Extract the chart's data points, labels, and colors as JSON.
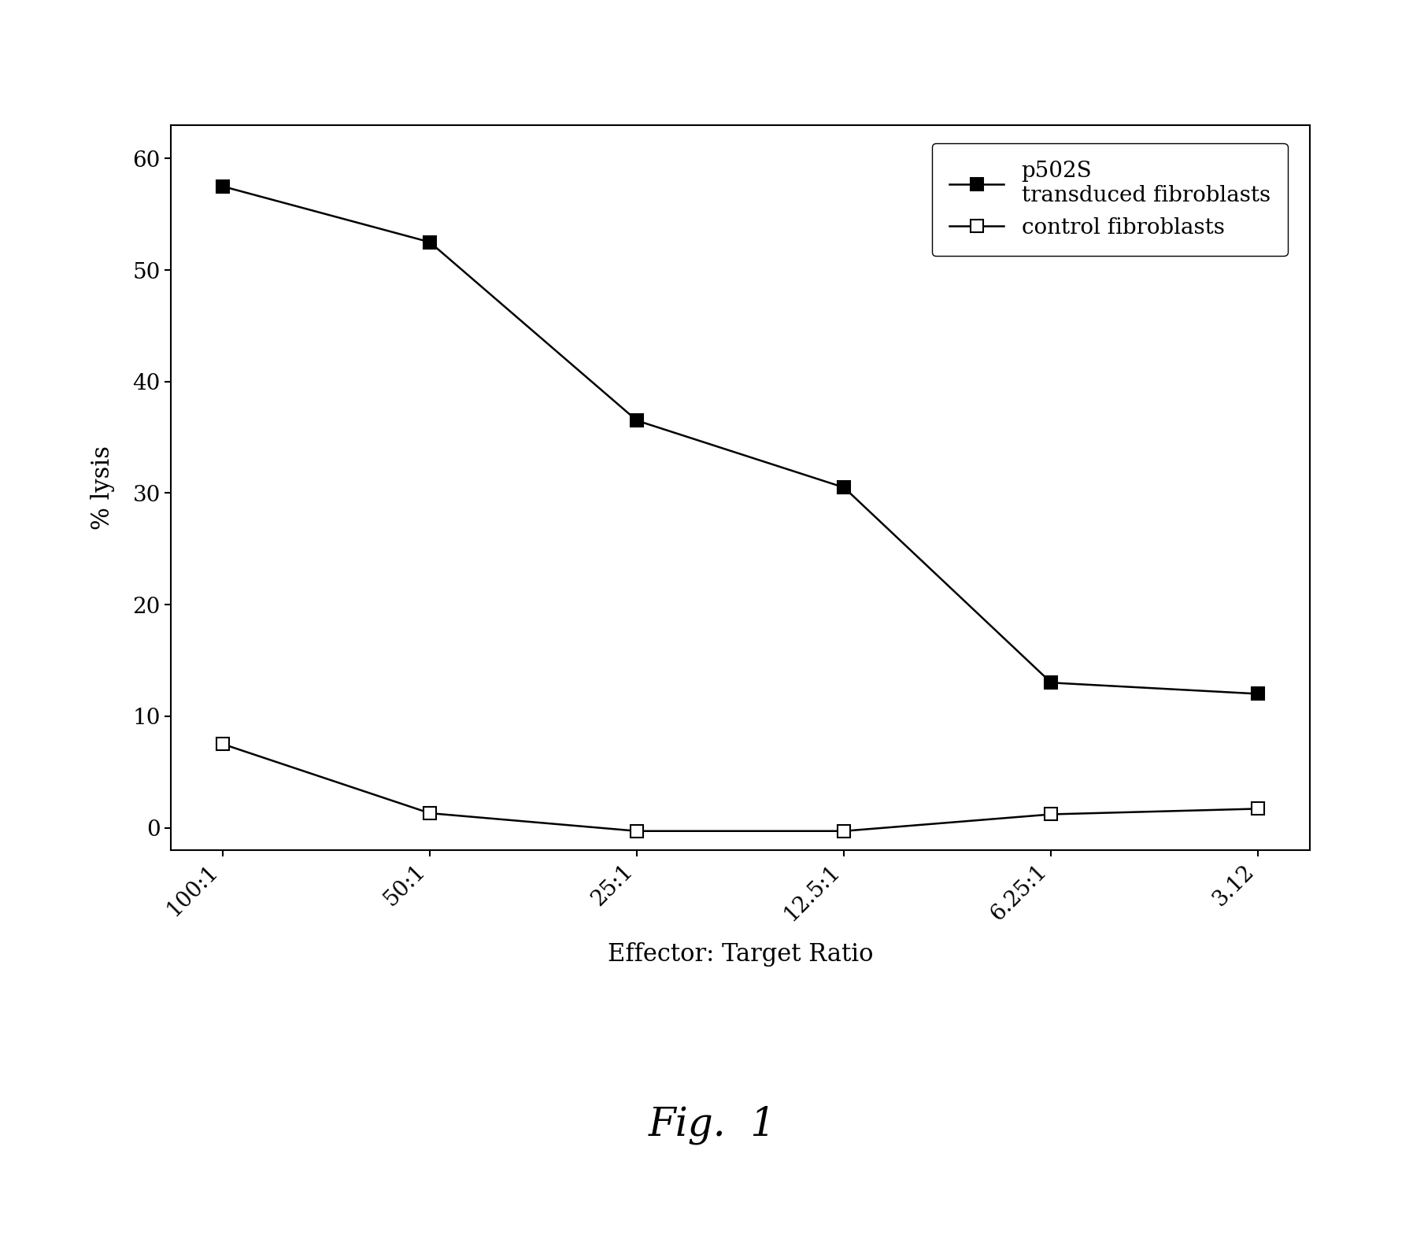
{
  "x_labels": [
    "100:1",
    "50:1",
    "25:1",
    "12.5:1",
    "6.25:1",
    "3.12"
  ],
  "x_positions": [
    0,
    1,
    2,
    3,
    4,
    5
  ],
  "series1_y": [
    57.5,
    52.5,
    36.5,
    30.5,
    13.0,
    12.0
  ],
  "series2_y": [
    7.5,
    1.3,
    -0.3,
    -0.3,
    1.2,
    1.7
  ],
  "series1_label_line1": "p502S",
  "series1_label_line2": "transduced fibroblasts",
  "series2_label": "control fibroblasts",
  "xlabel": "Effector: Target Ratio",
  "ylabel": "% lysis",
  "ylim": [
    -2,
    63
  ],
  "yticks": [
    0,
    10,
    20,
    30,
    40,
    50,
    60
  ],
  "background_color": "#ffffff",
  "line_color": "#000000",
  "marker1": "s",
  "marker2": "s",
  "marker1_facecolor": "#000000",
  "marker2_facecolor": "#ffffff",
  "markersize": 12,
  "linewidth": 1.8,
  "fig_caption": "Fig.  1",
  "axis_fontsize": 22,
  "tick_fontsize": 20,
  "legend_fontsize": 20,
  "caption_fontsize": 36
}
